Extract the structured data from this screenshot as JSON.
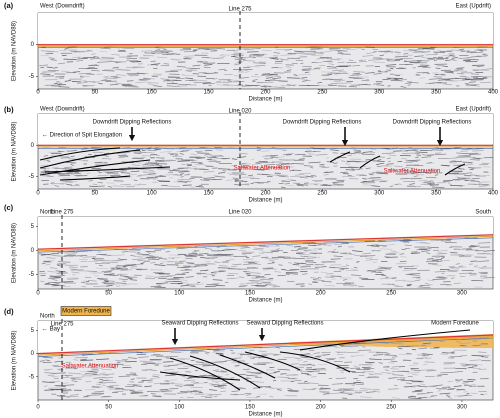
{
  "chart_data": [
    {
      "type": "radargram",
      "panel_label": "(a)",
      "left_header": "West (Downdrift)",
      "right_header": "East (Updrift)",
      "line_labels": [
        "Line 275"
      ],
      "annotations": [],
      "xlabel": "Distance (m)",
      "ylabel": "Elevation (m NAVD88)",
      "xlim": [
        0,
        400
      ],
      "xticks": [
        0,
        50,
        100,
        150,
        200,
        250,
        300,
        350,
        400
      ],
      "ylim": [
        -7,
        5
      ],
      "yticks": [
        -5,
        0
      ]
    },
    {
      "type": "radargram",
      "panel_label": "(b)",
      "left_header": "West (Downdrift)",
      "right_header": "East (Updrift)",
      "line_labels": [
        "Line 020"
      ],
      "annotations": [
        "← Direction of Spit Elongation",
        "Downdrift Dipping Reflections",
        "Downdrift Dipping Reflections",
        "Downdrift Dipping Reflections",
        "Saltwater Attenuation",
        "Saltwater Attenuation"
      ],
      "xlabel": "Distance (m)",
      "ylabel": "Elevation (m NAVD88)",
      "xlim": [
        0,
        400
      ],
      "xticks": [
        0,
        50,
        100,
        150,
        200,
        250,
        300,
        350,
        400
      ],
      "ylim": [
        -7,
        5
      ],
      "yticks": [
        -5,
        0
      ]
    },
    {
      "type": "radargram",
      "panel_label": "(c)",
      "left_header": "North",
      "right_header": "South",
      "line_labels": [
        "Line 275",
        "Line 020"
      ],
      "annotations": [],
      "xlabel": "Distance (m)",
      "ylabel": "Elevation (m NAVD88)",
      "xlim": [
        0,
        322
      ],
      "xticks": [
        0,
        50,
        100,
        150,
        200,
        250,
        300
      ],
      "ylim": [
        -8,
        7
      ],
      "yticks": [
        -5,
        0,
        5
      ]
    },
    {
      "type": "radargram",
      "panel_label": "(d)",
      "left_header": "North",
      "right_header": null,
      "line_labels": [
        "Line 275"
      ],
      "annotations": [
        "Modern Foredune",
        "← Bay",
        "Seaward Dipping Reflections",
        "Seaward Dipping Reflections",
        "Modern Foredune",
        "Saltwater Attenuation"
      ],
      "xlabel": "Distance (m)",
      "ylabel": "Elevation (m NAVD88)",
      "xlim": [
        0,
        322
      ],
      "xticks": [
        0,
        50,
        100,
        150,
        200,
        250,
        300
      ],
      "ylim": [
        -10,
        7
      ],
      "yticks": [
        -5,
        0,
        5
      ]
    }
  ]
}
